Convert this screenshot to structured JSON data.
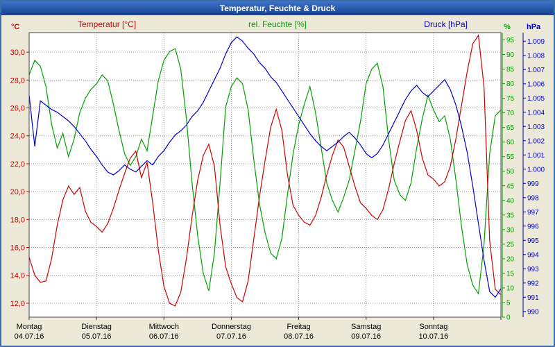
{
  "window": {
    "title": "Temperatur, Feuchte & Druck"
  },
  "colors": {
    "titlebar": "#16418f",
    "window_bg": "#ece9d8",
    "plot_bg": "#ffffff",
    "grid": "#999999"
  },
  "chart_data": {
    "type": "line",
    "title": "Temperatur, Feuchte & Druck",
    "grid": {
      "color": "#999999",
      "style": "dotted"
    },
    "x_axis": {
      "hours_per_point": 2,
      "total_hours": 168,
      "days": [
        {
          "name": "Montag",
          "date": "04.07.16"
        },
        {
          "name": "Dienstag",
          "date": "05.07.16"
        },
        {
          "name": "Mittwoch",
          "date": "06.07.16"
        },
        {
          "name": "Donnerstag",
          "date": "07.07.16"
        },
        {
          "name": "Freitag",
          "date": "08.07.16"
        },
        {
          "name": "Samstag",
          "date": "09.07.16"
        },
        {
          "name": "Sonntag",
          "date": "10.07.16"
        }
      ]
    },
    "axes": {
      "temperature": {
        "label": "Temperatur [°C]",
        "unit": "°C",
        "color": "#cc0000",
        "range": [
          11.0,
          31.4
        ],
        "tick_values": [
          30,
          28,
          26,
          24,
          22,
          20,
          18,
          16,
          14,
          12
        ],
        "tick_labels": [
          "30,0",
          "28,0",
          "26,0",
          "24,0",
          "22,0",
          "20,0",
          "18,0",
          "16,0",
          "14,0",
          "12,0"
        ]
      },
      "humidity": {
        "label": "rel. Feuchte [%]",
        "unit": "%",
        "color": "#00a000",
        "range": [
          0,
          97.5
        ],
        "tick_values": [
          95,
          90,
          85,
          80,
          75,
          70,
          65,
          60,
          55,
          50,
          45,
          40,
          35,
          30,
          25,
          20,
          15,
          10,
          5,
          0
        ],
        "tick_labels": [
          "95",
          "90",
          "85",
          "80",
          "75",
          "70",
          "65",
          "60",
          "55",
          "50",
          "45",
          "40",
          "35",
          "30",
          "25",
          "20",
          "15",
          "10",
          "5",
          "0"
        ]
      },
      "pressure": {
        "label": "Druck [hPa]",
        "unit": "hPa",
        "color": "#0000cc",
        "range": [
          989.6,
          1009.6
        ],
        "tick_values": [
          1009,
          1008,
          1007,
          1006,
          1005,
          1004,
          1003,
          1002,
          1001,
          1000,
          999,
          998,
          997,
          996,
          995,
          994,
          993,
          992,
          991,
          990
        ],
        "tick_labels": [
          "1.009",
          "1.008",
          "1.007",
          "1.006",
          "1.005",
          "1.004",
          "1.003",
          "1.002",
          "1.001",
          "1.000",
          "999",
          "998",
          "997",
          "996",
          "995",
          "994",
          "993",
          "992",
          "991",
          "990"
        ]
      }
    },
    "series": {
      "temperature": [
        15.3,
        14.0,
        13.5,
        13.6,
        15.2,
        17.6,
        19.4,
        20.4,
        19.8,
        20.3,
        18.6,
        17.8,
        17.5,
        17.1,
        17.7,
        18.8,
        20.1,
        21.3,
        22.4,
        22.9,
        21.0,
        22.1,
        19.2,
        15.8,
        13.2,
        12.0,
        11.8,
        12.8,
        15.2,
        18.2,
        20.8,
        22.6,
        23.4,
        21.8,
        17.6,
        14.6,
        13.4,
        12.4,
        12.1,
        13.6,
        16.6,
        19.6,
        22.2,
        24.6,
        25.9,
        24.4,
        21.2,
        19.0,
        18.3,
        17.8,
        17.6,
        18.3,
        19.6,
        21.2,
        22.6,
        23.7,
        23.2,
        21.8,
        20.4,
        19.2,
        18.8,
        18.3,
        18.0,
        18.7,
        20.2,
        22.0,
        23.6,
        25.1,
        25.8,
        24.4,
        22.4,
        21.2,
        20.9,
        20.4,
        20.7,
        21.8,
        23.8,
        26.2,
        28.6,
        30.6,
        31.2,
        27.5,
        16.5,
        13.0,
        12.6
      ],
      "humidity": [
        83,
        88,
        86,
        79,
        66,
        58,
        63,
        55,
        61,
        70,
        75,
        78,
        80,
        83,
        81,
        73,
        64,
        56,
        52,
        55,
        61,
        57,
        69,
        81,
        88,
        91,
        92,
        85,
        68,
        46,
        28,
        15,
        9,
        22,
        46,
        72,
        79,
        82,
        80,
        71,
        54,
        39,
        29,
        22,
        20,
        27,
        42,
        56,
        66,
        73,
        79,
        70,
        58,
        46,
        40,
        36,
        41,
        47,
        57,
        67,
        80,
        85,
        87,
        79,
        61,
        47,
        42,
        40,
        46,
        58,
        68,
        76,
        71,
        67,
        69,
        61,
        47,
        31,
        18,
        11,
        8,
        25,
        56,
        69,
        71
      ],
      "pressure": [
        1005.2,
        1001.6,
        1004.8,
        1004.5,
        1004.2,
        1004.0,
        1003.7,
        1003.4,
        1003.0,
        1002.5,
        1002.0,
        1001.4,
        1000.9,
        1000.3,
        999.8,
        999.6,
        999.9,
        1000.3,
        1000.0,
        999.8,
        1000.2,
        1000.6,
        1000.3,
        1000.9,
        1001.3,
        1001.9,
        1002.4,
        1002.7,
        1003.1,
        1003.7,
        1004.1,
        1004.7,
        1005.5,
        1006.3,
        1007.1,
        1008.1,
        1008.9,
        1009.3,
        1009.0,
        1008.5,
        1008.1,
        1007.5,
        1007.1,
        1006.5,
        1006.1,
        1005.5,
        1004.9,
        1004.3,
        1003.7,
        1003.1,
        1002.5,
        1002.0,
        1001.6,
        1001.3,
        1001.6,
        1001.9,
        1002.3,
        1002.6,
        1002.2,
        1001.7,
        1001.1,
        1000.8,
        1001.1,
        1001.7,
        1002.5,
        1003.3,
        1004.1,
        1004.9,
        1005.5,
        1005.9,
        1005.4,
        1005.1,
        1005.5,
        1005.9,
        1006.3,
        1005.6,
        1004.5,
        1003.0,
        1001.2,
        998.8,
        996.2,
        993.6,
        991.4,
        991.0,
        991.6
      ]
    }
  }
}
